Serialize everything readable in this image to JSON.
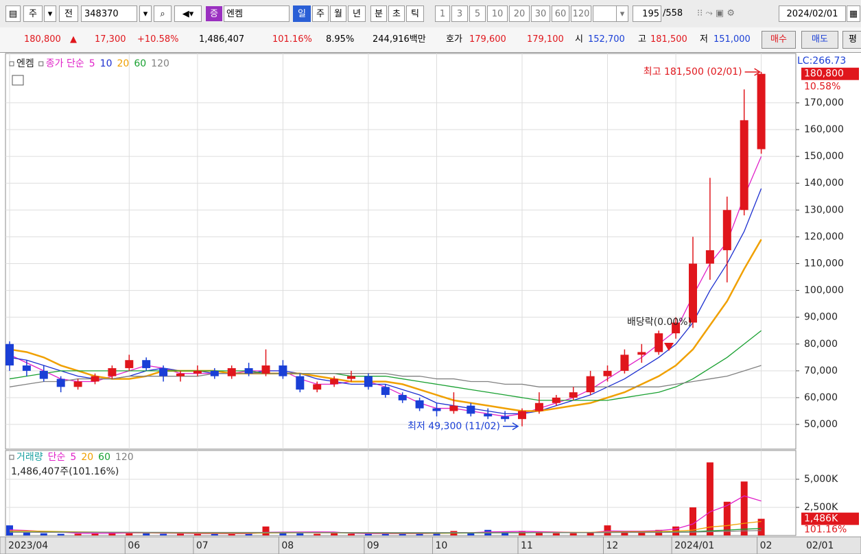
{
  "toolbar": {
    "items": [
      "주",
      "전",
      "348370",
      "증",
      "엔켐",
      "일",
      "주",
      "월",
      "년",
      "분",
      "초",
      "틱",
      "1",
      "3",
      "5",
      "10",
      "20",
      "30",
      "60",
      "120",
      "195",
      "/558",
      "2024/02/01"
    ]
  },
  "quote": {
    "price": "180,800",
    "change": "17,300",
    "change_pct": "+10.58%",
    "volume": "1,486,407",
    "volume_ratio": "101.16%",
    "turnover": "8.95%",
    "amount": "244,916백만",
    "bid_ask_label": "호가",
    "ask": "179,600",
    "bid": "179,100",
    "open_label": "시",
    "open": "152,700",
    "high_label": "고",
    "high": "181,500",
    "low_label": "저",
    "low": "151,000",
    "buy": "매수",
    "sell": "매도",
    "avg": "평"
  },
  "chart_data": [
    {
      "type": "candlestick",
      "stock_name": "엔켐",
      "ma_label": "종가 단순",
      "categories": [
        "2023/04",
        null,
        null,
        null,
        null,
        null,
        null,
        "06",
        null,
        null,
        null,
        "07",
        null,
        null,
        null,
        null,
        "08",
        null,
        null,
        null,
        null,
        "09",
        null,
        null,
        null,
        "10",
        null,
        null,
        null,
        null,
        "11",
        null,
        null,
        null,
        null,
        "12",
        null,
        null,
        null,
        "2024/01",
        null,
        null,
        null,
        null,
        "02"
      ],
      "open": [
        80000,
        72000,
        70000,
        67000,
        64000,
        66000,
        68000,
        71000,
        74000,
        71000,
        68000,
        69000,
        70000,
        68000,
        71000,
        69000,
        72000,
        68000,
        63000,
        65000,
        67000,
        68000,
        64000,
        61000,
        59000,
        56000,
        55000,
        57000,
        54000,
        53000,
        52000,
        55000,
        58000,
        60000,
        62000,
        68000,
        70000,
        76000,
        77000,
        84000,
        88000,
        110000,
        115000,
        130000,
        152700
      ],
      "high": [
        81000,
        74000,
        72000,
        68000,
        67000,
        69000,
        72000,
        76000,
        75000,
        72000,
        70000,
        72000,
        71000,
        72000,
        73000,
        78000,
        74000,
        69000,
        66000,
        68000,
        70000,
        69000,
        65000,
        62000,
        60000,
        58000,
        62000,
        58000,
        56000,
        55000,
        56000,
        62000,
        61000,
        64000,
        70000,
        72000,
        78000,
        80000,
        85000,
        90000,
        120000,
        142000,
        135000,
        175000,
        181500
      ],
      "low": [
        70000,
        68000,
        66000,
        62000,
        63000,
        65000,
        67000,
        70000,
        70000,
        66000,
        66000,
        68000,
        67000,
        67000,
        68000,
        68000,
        67000,
        62000,
        62000,
        64000,
        66000,
        63000,
        60000,
        58000,
        55000,
        53000,
        54000,
        53000,
        52000,
        51000,
        49300,
        54000,
        57000,
        59000,
        61000,
        66000,
        69000,
        73000,
        76000,
        82000,
        86000,
        104000,
        103000,
        128000,
        151000
      ],
      "close": [
        72000,
        70000,
        67000,
        64000,
        66000,
        68000,
        71000,
        74000,
        71000,
        68000,
        69000,
        70000,
        68000,
        71000,
        69000,
        72000,
        68000,
        63000,
        65000,
        67000,
        68000,
        64000,
        61000,
        59000,
        56000,
        55000,
        57000,
        54000,
        53000,
        52000,
        55000,
        58000,
        60000,
        62000,
        68000,
        70000,
        76000,
        77000,
        84000,
        88000,
        110000,
        115000,
        130000,
        163500,
        180800
      ],
      "up_color": "#e0161c",
      "down_color": "#1a3fd6",
      "series": [
        {
          "name": "5",
          "color": "#e020c8",
          "values": [
            76000,
            73000,
            70000,
            67000,
            66000,
            66000,
            68000,
            70000,
            72000,
            71000,
            69000,
            69000,
            69000,
            69000,
            70000,
            70000,
            70000,
            67000,
            65000,
            65000,
            66000,
            66000,
            64000,
            61000,
            58000,
            56000,
            56000,
            55000,
            54000,
            53000,
            54000,
            56000,
            58000,
            60000,
            63000,
            67000,
            71000,
            75000,
            80000,
            85000,
            98000,
            110000,
            118000,
            135000,
            150000
          ]
        },
        {
          "name": "10",
          "color": "#1c2fd0",
          "values": [
            75000,
            74000,
            72000,
            70000,
            68000,
            67000,
            67000,
            68000,
            70000,
            71000,
            70000,
            70000,
            69000,
            69000,
            69000,
            70000,
            70000,
            69000,
            67000,
            66000,
            65000,
            65000,
            65000,
            63000,
            61000,
            58000,
            57000,
            56000,
            55000,
            54000,
            54000,
            55000,
            57000,
            59000,
            61000,
            64000,
            67000,
            71000,
            75000,
            80000,
            88000,
            100000,
            110000,
            122000,
            138000
          ]
        },
        {
          "name": "20",
          "color": "#f0a000",
          "values": [
            78000,
            77000,
            75000,
            72000,
            70000,
            68000,
            67000,
            67000,
            68000,
            70000,
            70000,
            70000,
            70000,
            69000,
            69000,
            69000,
            69000,
            69000,
            68000,
            67000,
            66000,
            66000,
            66000,
            65000,
            63000,
            61000,
            59000,
            58000,
            57000,
            56000,
            55000,
            55000,
            56000,
            57000,
            58000,
            60000,
            62000,
            65000,
            68000,
            72000,
            78000,
            87000,
            96000,
            108000,
            119000
          ]
        },
        {
          "name": "60",
          "color": "#18a030",
          "values": [
            67000,
            68000,
            69000,
            70000,
            70000,
            70000,
            70000,
            70000,
            70000,
            70000,
            70000,
            70000,
            70000,
            70000,
            70000,
            69000,
            69000,
            69000,
            69000,
            69000,
            68000,
            68000,
            68000,
            67000,
            66000,
            65000,
            64000,
            63000,
            62000,
            61000,
            60000,
            59000,
            59000,
            59000,
            59000,
            59000,
            60000,
            61000,
            62000,
            64000,
            67000,
            71000,
            75000,
            80000,
            85000
          ]
        },
        {
          "name": "120",
          "color": "#808080",
          "values": [
            64000,
            65000,
            66000,
            66000,
            67000,
            67000,
            67000,
            68000,
            68000,
            68000,
            68000,
            68000,
            69000,
            69000,
            69000,
            69000,
            69000,
            69000,
            69000,
            69000,
            69000,
            69000,
            69000,
            68000,
            68000,
            67000,
            67000,
            66000,
            66000,
            65000,
            65000,
            64000,
            64000,
            64000,
            64000,
            64000,
            64000,
            64000,
            64000,
            65000,
            66000,
            67000,
            68000,
            70000,
            72000
          ]
        }
      ],
      "ylim": [
        40800,
        188400
      ],
      "yticks": [
        {
          "value": 50000,
          "label": "50,000"
        },
        {
          "value": 60000,
          "label": "60,000"
        },
        {
          "value": 70000,
          "label": "70,000"
        },
        {
          "value": 80000,
          "label": "80,000"
        },
        {
          "value": 90000,
          "label": "90,000"
        },
        {
          "value": 100000,
          "label": "100,000"
        },
        {
          "value": 110000,
          "label": "110,000"
        },
        {
          "value": 120000,
          "label": "120,000"
        },
        {
          "value": 130000,
          "label": "130,000"
        },
        {
          "value": 140000,
          "label": "140,000"
        },
        {
          "value": 150000,
          "label": "150,000"
        },
        {
          "value": 160000,
          "label": "160,000"
        },
        {
          "value": 170000,
          "label": "170,000"
        }
      ],
      "grid": true,
      "high_annotation": "최고 181,500 (02/01)",
      "low_annotation": "최저 49,300 (11/02)",
      "dividend_annotation": "배당락(0.00%)",
      "lc_label": "LC:266.73",
      "change_label": "10.58%",
      "cursor_label": "02/01"
    },
    {
      "type": "bar",
      "title": "거래량",
      "ma_label": "단순",
      "summary": "1,486,407주(101.16%)",
      "values": [
        900,
        300,
        200,
        150,
        150,
        200,
        250,
        250,
        200,
        150,
        150,
        150,
        200,
        150,
        150,
        800,
        250,
        200,
        150,
        200,
        150,
        150,
        200,
        150,
        200,
        250,
        400,
        250,
        500,
        300,
        400,
        250,
        200,
        200,
        250,
        900,
        400,
        300,
        500,
        800,
        2500,
        6500,
        3000,
        4800,
        1486
      ],
      "series": [
        {
          "name": "5",
          "color": "#e020c8",
          "values": [
            500,
            450,
            350,
            300,
            200,
            190,
            200,
            220,
            230,
            210,
            190,
            170,
            170,
            160,
            160,
            280,
            300,
            310,
            320,
            310,
            200,
            170,
            170,
            170,
            170,
            190,
            240,
            250,
            320,
            340,
            370,
            340,
            310,
            270,
            260,
            400,
            390,
            390,
            430,
            580,
            1020,
            2100,
            2660,
            3520,
            3060
          ]
        },
        {
          "name": "20",
          "color": "#f0a000",
          "values": [
            400,
            400,
            380,
            350,
            320,
            300,
            280,
            260,
            240,
            230,
            220,
            210,
            200,
            200,
            200,
            220,
            230,
            240,
            240,
            240,
            230,
            220,
            210,
            200,
            200,
            200,
            210,
            220,
            230,
            250,
            260,
            270,
            280,
            280,
            280,
            320,
            330,
            340,
            360,
            390,
            480,
            750,
            880,
            1080,
            1250
          ]
        },
        {
          "name": "60",
          "color": "#18a030",
          "values": [
            300,
            300,
            300,
            300,
            290,
            290,
            280,
            280,
            270,
            270,
            260,
            260,
            250,
            250,
            250,
            260,
            260,
            260,
            250,
            250,
            240,
            240,
            240,
            230,
            230,
            230,
            230,
            230,
            240,
            240,
            240,
            250,
            250,
            250,
            250,
            270,
            280,
            280,
            290,
            300,
            340,
            420,
            480,
            560,
            620
          ]
        },
        {
          "name": "120",
          "color": "#808080",
          "values": [
            280,
            280,
            280,
            280,
            280,
            280,
            280,
            280,
            270,
            270,
            270,
            270,
            270,
            270,
            270,
            270,
            270,
            270,
            260,
            260,
            260,
            260,
            260,
            260,
            260,
            260,
            260,
            260,
            260,
            260,
            260,
            260,
            260,
            260,
            260,
            270,
            270,
            270,
            270,
            280,
            300,
            340,
            370,
            410,
            440
          ]
        }
      ],
      "ylim": [
        0,
        7560
      ],
      "yticks": [
        {
          "value": 2500,
          "label": "2,500K"
        },
        {
          "value": 5000,
          "label": "5,000K"
        }
      ],
      "last_label": "1,486K",
      "ratio_label": "101.16%"
    }
  ]
}
